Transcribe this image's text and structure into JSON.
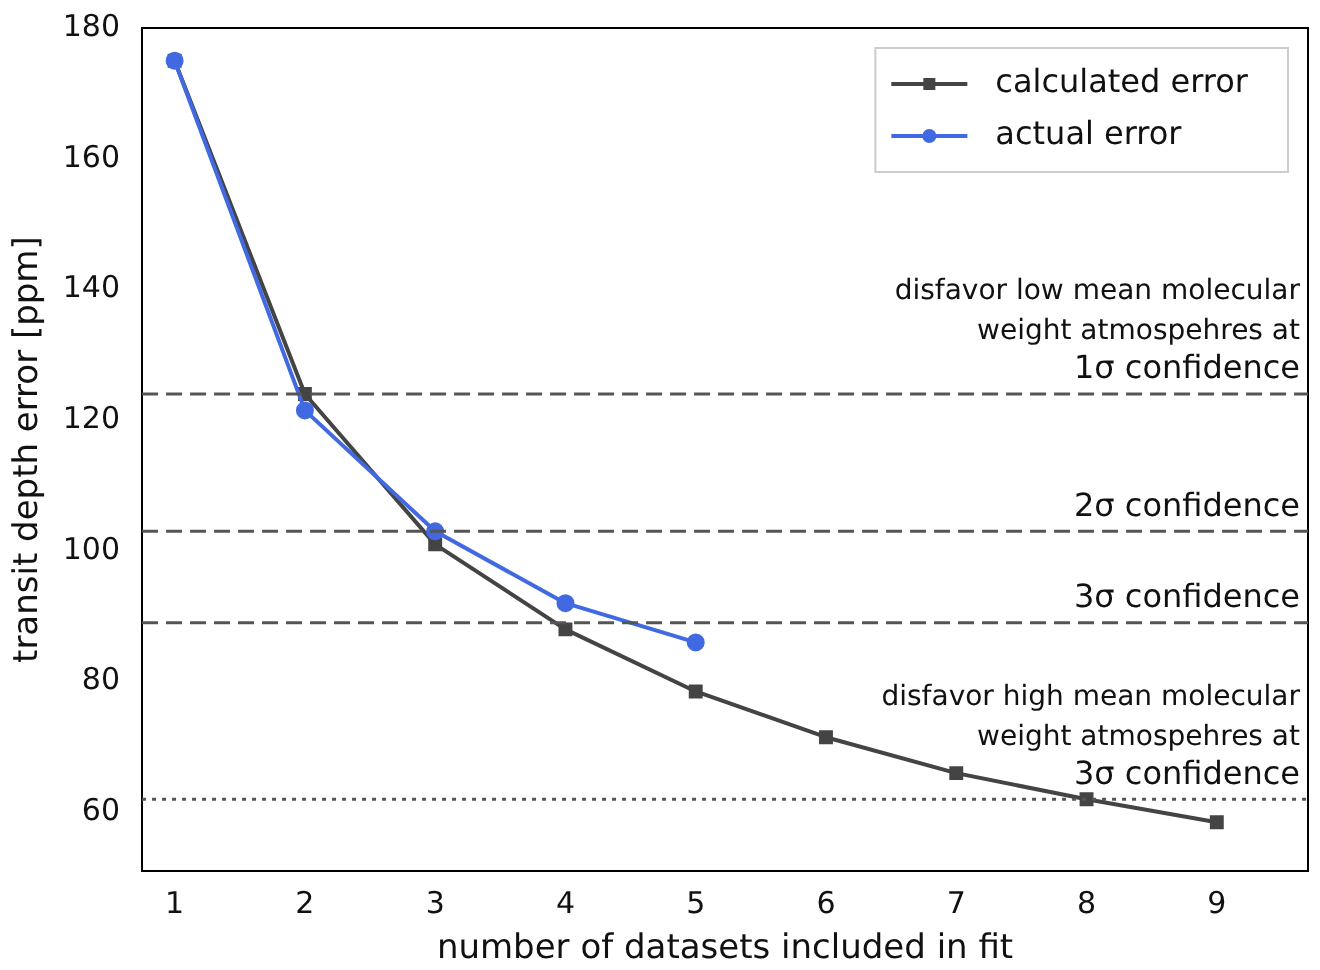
{
  "chart_data": {
    "type": "line",
    "xlabel": "number of datasets included in fit",
    "ylabel": "transit depth error [ppm]",
    "x": [
      1,
      2,
      3,
      4,
      5,
      6,
      7,
      8,
      9
    ],
    "series": [
      {
        "name": "calculated error",
        "color": "#444444",
        "marker": "square",
        "values": [
          175,
          124,
          101,
          88,
          78.5,
          71.5,
          66,
          62,
          58.5
        ]
      },
      {
        "name": "actual error",
        "color": "#4169e1",
        "marker": "circle",
        "values": [
          175,
          121.5,
          103,
          92,
          86,
          null,
          null,
          null,
          null
        ]
      }
    ],
    "xlim": [
      0.75,
      9.7
    ],
    "ylim": [
      51,
      180
    ],
    "xticks": [
      1,
      2,
      3,
      4,
      5,
      6,
      7,
      8,
      9
    ],
    "yticks": [
      60,
      80,
      100,
      120,
      140,
      160,
      180
    ],
    "ref_lines": [
      {
        "axis": "y",
        "value": 124,
        "label": "disfavor low mean molecular\nweight atmospehres at\n1σ confidence",
        "color": "#555555",
        "line_style": "dashed"
      },
      {
        "axis": "y",
        "value": 103,
        "label": "2σ confidence",
        "color": "#555555",
        "line_style": "dashed"
      },
      {
        "axis": "y",
        "value": 89,
        "label": "3σ confidence",
        "color": "#555555",
        "line_style": "dashed"
      },
      {
        "axis": "y",
        "value": 62,
        "label": "disfavor high mean molecular\nweight atmospehres at\n3σ confidence",
        "color": "#555555",
        "line_style": "dotted"
      }
    ],
    "legend": "top right",
    "grid": false
  }
}
